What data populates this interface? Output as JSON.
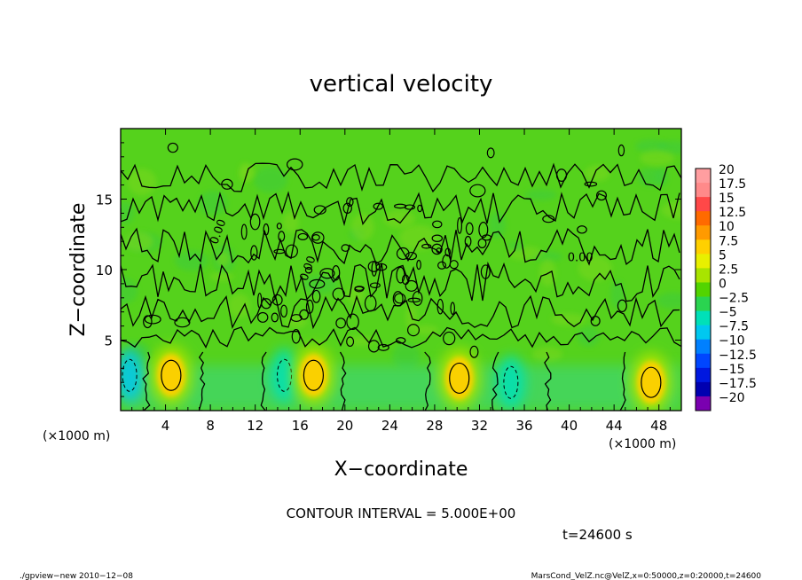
{
  "chart_data": {
    "type": "heatmap",
    "title": "vertical velocity",
    "xlabel": "X−coordinate",
    "ylabel": "Z−coordinate",
    "x_unit_left": "(×1000 m)",
    "x_unit_right": "(×1000 m)",
    "xlim": [
      0,
      50
    ],
    "ylim": [
      0,
      20
    ],
    "x_ticks": [
      "4",
      "8",
      "12",
      "16",
      "20",
      "24",
      "28",
      "32",
      "36",
      "40",
      "44",
      "48"
    ],
    "x_tick_values": [
      4,
      8,
      12,
      16,
      20,
      24,
      28,
      32,
      36,
      40,
      44,
      48
    ],
    "y_ticks": [
      "5",
      "10",
      "15"
    ],
    "y_tick_values": [
      5,
      10,
      15
    ],
    "colorbar": {
      "labels": [
        "20",
        "17.5",
        "15",
        "12.5",
        "10",
        "7.5",
        "5",
        "2.5",
        "0",
        "−2.5",
        "−5",
        "−7.5",
        "−10",
        "−12.5",
        "−15",
        "−17.5",
        "−20"
      ],
      "values": [
        20,
        17.5,
        15,
        12.5,
        10,
        7.5,
        5,
        2.5,
        0,
        -2.5,
        -5,
        -7.5,
        -10,
        -12.5,
        -15,
        -17.5,
        -20
      ],
      "colors": [
        "#ff9ea0",
        "#ff8a8a",
        "#ff4848",
        "#ff6a00",
        "#ff9a00",
        "#ffd000",
        "#e8f000",
        "#a8e400",
        "#52d400",
        "#2ad450",
        "#00e0b8",
        "#00c8f0",
        "#0080ff",
        "#0046ff",
        "#0018e0",
        "#0000b0",
        "#7a00b0"
      ]
    },
    "contour_labels": [
      "0.00",
      "0.00",
      "0.00"
    ],
    "contour_interval_text": "CONTOUR INTERVAL = 5.000E+00",
    "updrafts": [
      {
        "x": 4.5,
        "z": 2.5,
        "w": 7.5
      },
      {
        "x": 17.2,
        "z": 2.5,
        "w": 7.5
      },
      {
        "x": 30.2,
        "z": 2.3,
        "w": 7.5
      },
      {
        "x": 47.3,
        "z": 2.0,
        "w": 7.5
      }
    ],
    "downdrafts": [
      {
        "x": 0.8,
        "z": 2.5,
        "w": -7.5
      },
      {
        "x": 14.6,
        "z": 2.5,
        "w": -5
      },
      {
        "x": 34.8,
        "z": 2.0,
        "w": -5
      }
    ]
  },
  "time_label": "t=24600 s",
  "footer_left": "./gpview−new   2010−12−08",
  "footer_right": "MarsCond_VelZ.nc@VelZ,x=0:50000,z=0:20000,t=24600"
}
